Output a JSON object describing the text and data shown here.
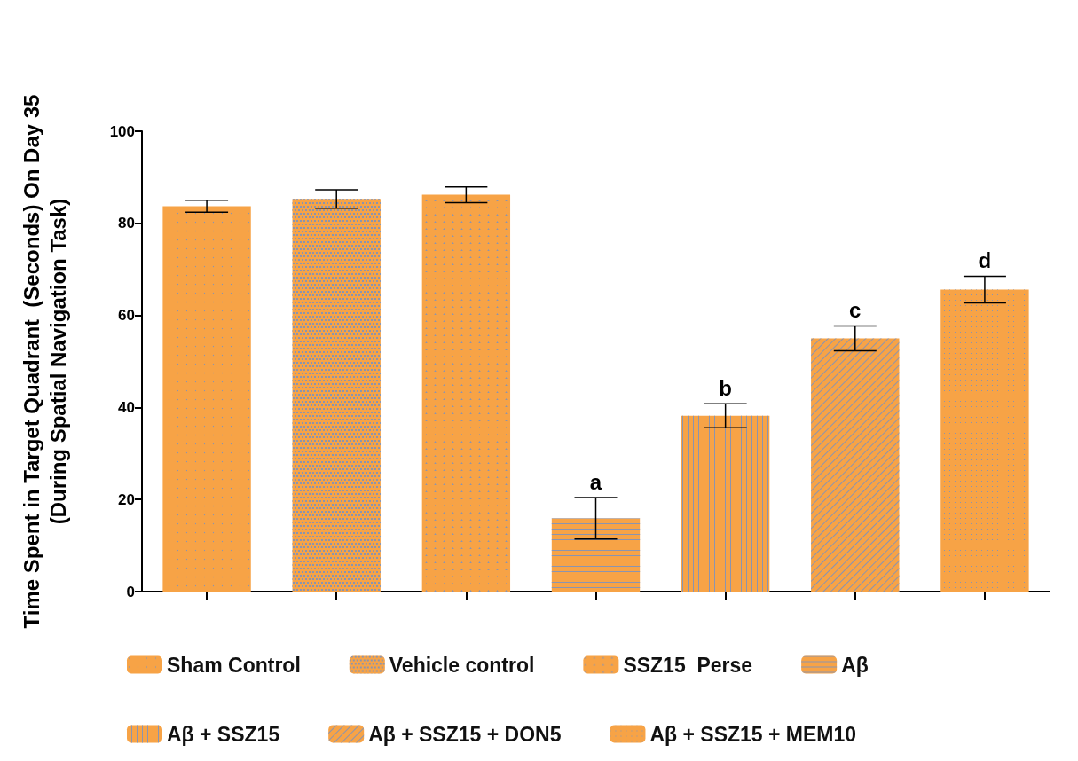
{
  "chart_data": {
    "type": "bar",
    "ylabel": "Time Spent in Target Quadrant  (Seconds) On Day 35\n(During Spatial Navigation Task)",
    "categories": [
      null,
      null,
      null,
      null,
      null,
      null,
      null
    ],
    "ylim": [
      0,
      100
    ],
    "yticks": [
      0,
      20,
      40,
      60,
      80,
      100
    ],
    "grid": false,
    "legend": "bottom",
    "series": [
      {
        "name": "Sham Control",
        "color": "#f7a346",
        "values": [
          83.7,
          null,
          null,
          null,
          null,
          null,
          null
        ],
        "errors": [
          1.3,
          null,
          null,
          null,
          null,
          null,
          null
        ]
      },
      {
        "name": "Vehicle control",
        "color": "#f7a346",
        "values": [
          null,
          85.3,
          null,
          null,
          null,
          null,
          null
        ],
        "errors": [
          null,
          2,
          null,
          null,
          null,
          null,
          null
        ]
      },
      {
        "name": "SSZ15  Perse",
        "color": "#f7a346",
        "values": [
          null,
          null,
          86.2,
          null,
          null,
          null,
          null
        ],
        "errors": [
          null,
          null,
          1.7,
          null,
          null,
          null,
          null
        ]
      },
      {
        "name": "Aβ",
        "color": "#f7a346",
        "values": [
          null,
          null,
          null,
          15.9,
          null,
          null,
          null
        ],
        "errors": [
          null,
          null,
          null,
          4.5,
          null,
          null,
          null
        ],
        "value_labels": [
          null,
          null,
          null,
          "a",
          null,
          null,
          null
        ]
      },
      {
        "name": "Aβ + SSZ15",
        "color": "#f7a346",
        "values": [
          null,
          null,
          null,
          null,
          38.2,
          null,
          null
        ],
        "errors": [
          null,
          null,
          null,
          null,
          2.6,
          null,
          null
        ],
        "value_labels": [
          null,
          null,
          null,
          null,
          "b",
          null,
          null
        ]
      },
      {
        "name": "Aβ + SSZ15 + DON5",
        "color": "#f7a346",
        "values": [
          null,
          null,
          null,
          null,
          null,
          55,
          null
        ],
        "errors": [
          null,
          null,
          null,
          null,
          null,
          2.7,
          null
        ],
        "value_labels": [
          null,
          null,
          null,
          null,
          null,
          "c",
          null
        ]
      },
      {
        "name": "Aβ + SSZ15 + MEM10",
        "color": "#f7a346",
        "values": [
          null,
          null,
          null,
          null,
          null,
          null,
          65.6
        ],
        "errors": [
          null,
          null,
          null,
          null,
          null,
          null,
          2.9
        ],
        "value_labels": [
          null,
          null,
          null,
          null,
          null,
          null,
          "d"
        ]
      }
    ]
  }
}
